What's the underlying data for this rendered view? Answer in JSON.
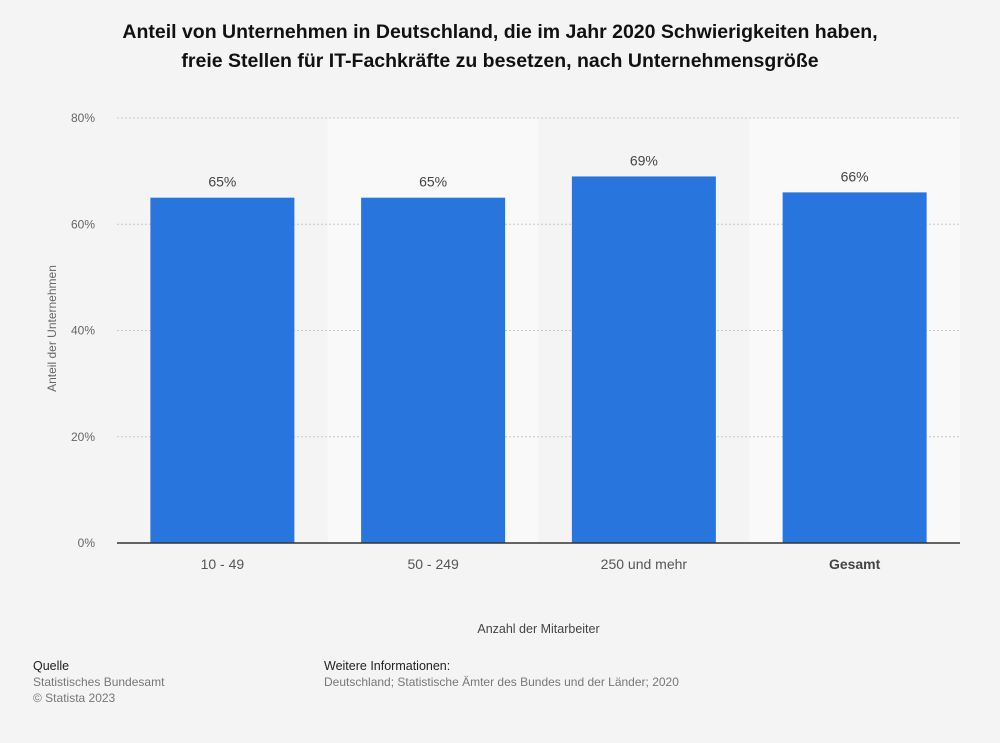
{
  "title_line1": "Anteil von Unternehmen in Deutschland, die im Jahr 2020 Schwierigkeiten haben,",
  "title_line2": "freie Stellen für IT-Fachkräfte zu besetzen, nach Unternehmensgröße",
  "footer": {
    "source_heading": "Quelle",
    "source_name": "Statistisches Bundesamt",
    "copyright": "© Statista 2023",
    "info_heading": "Weitere Informationen:",
    "info_text": "Deutschland; Statistische Ämter des Bundes und der Länder; 2020"
  },
  "colors": {
    "bar": "#2876dd",
    "band": "#f9f9f9",
    "background": "#f4f4f4"
  },
  "chart_data": {
    "type": "bar",
    "categories": [
      "10 - 49",
      "50 - 249",
      "250 und mehr",
      "Gesamt"
    ],
    "category_bold": [
      false,
      false,
      false,
      true
    ],
    "values": [
      65,
      65,
      69,
      66
    ],
    "value_labels": [
      "65%",
      "65%",
      "69%",
      "66%"
    ],
    "xlabel": "Anzahl der Mitarbeiter",
    "ylabel": "Anteil der Unternehmen",
    "ylim": [
      0,
      80
    ],
    "yticks": [
      0,
      20,
      40,
      60,
      80
    ],
    "ytick_labels": [
      "0%",
      "20%",
      "40%",
      "60%",
      "80%"
    ],
    "grid": true,
    "legend": "none"
  }
}
